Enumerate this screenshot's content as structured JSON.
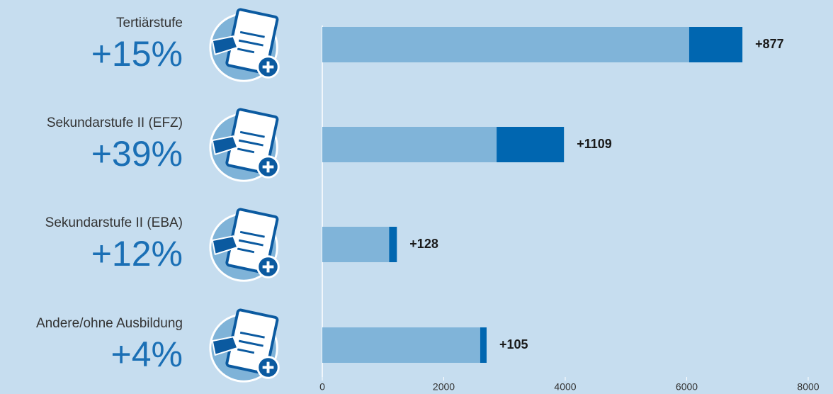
{
  "chart_data": {
    "type": "stacked-bar",
    "orientation": "horizontal",
    "categories": [
      "Tertiärstufe",
      "Sekundarstufe II (EFZ)",
      "Sekundarstufe II (EBA)",
      "Andere/ohne Ausbildung"
    ],
    "category_percents": [
      "+15%",
      "+39%",
      "+12%",
      "+4%"
    ],
    "series": [
      {
        "color": "#80b4d9",
        "values": [
          6040,
          2870,
          1100,
          2600
        ]
      },
      {
        "color": "#0066b0",
        "values": [
          877,
          1109,
          128,
          105
        ],
        "value_labels": [
          "+877",
          "+1109",
          "+128",
          "+105"
        ]
      }
    ],
    "xlim": [
      0,
      8000
    ],
    "xticks": [
      0,
      2000,
      4000,
      6000,
      8000
    ]
  }
}
